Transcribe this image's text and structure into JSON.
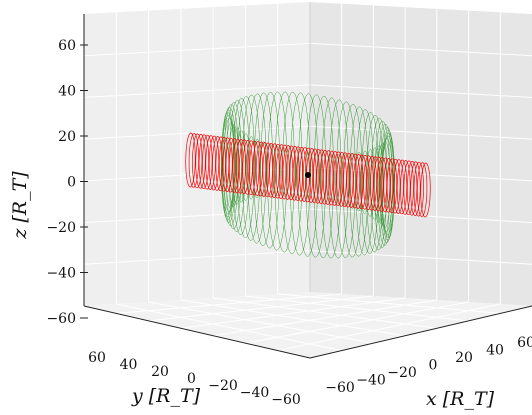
{
  "chart_data": {
    "type": "3d-wireframe",
    "title": "",
    "xlabel": "x [R_T]",
    "ylabel": "y [R_T]",
    "zlabel": "z [R_T]",
    "x_ticks": [
      "−60",
      "−40",
      "−20",
      "0",
      "20",
      "40",
      "60"
    ],
    "y_ticks": [
      "60",
      "40",
      "20",
      "0",
      "−20",
      "−40",
      "−60"
    ],
    "z_ticks": [
      "60",
      "40",
      "20",
      "0",
      "−20",
      "−40",
      "−60"
    ],
    "xlim": [
      -70,
      70
    ],
    "ylim": [
      -70,
      70
    ],
    "zlim": [
      -70,
      70
    ],
    "grid": true,
    "series": [
      {
        "color": "#008000",
        "shape": "torus",
        "major_radius": 32,
        "minor_radius": 18,
        "axis": "x",
        "extent_x": [
          -60,
          60
        ]
      },
      {
        "color": "#ff0000",
        "shape": "cylinder",
        "radius": 12,
        "axis": "x",
        "extent_x": [
          -50,
          50
        ]
      },
      {
        "color": "#000000",
        "shape": "point",
        "x": 0,
        "y": 0,
        "z": 0
      }
    ]
  }
}
